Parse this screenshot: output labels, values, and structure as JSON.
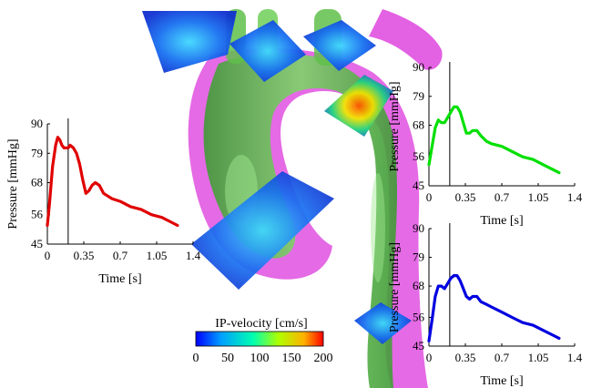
{
  "figure": {
    "colorbar": {
      "title": "IP-velocity [cm/s]",
      "ticks": [
        "0",
        "50",
        "100",
        "150",
        "200"
      ],
      "min": 0,
      "max": 200,
      "colors": [
        "#0000ff",
        "#00a0ff",
        "#00ffb0",
        "#b0ff00",
        "#ffb000",
        "#ff0000"
      ]
    },
    "colors": {
      "vessel_green": "#5fbf4a",
      "vessel_magenta": "#e050e0",
      "plane_blue": "#1040e0",
      "plane_cyan": "#30c8e0"
    }
  },
  "chart_data": [
    {
      "type": "line",
      "title": "",
      "xlabel": "Time [s]",
      "ylabel": "Pressure [mmHg]",
      "xlim": [
        0,
        1.4
      ],
      "ylim": [
        45,
        90
      ],
      "xticks": [
        "0",
        "0.35",
        "0.7",
        "1.05",
        "1.4"
      ],
      "yticks": [
        "45",
        "56",
        "68",
        "79",
        "90"
      ],
      "marker_time": 0.2,
      "color": "#e00000",
      "series": [
        {
          "x": [
            0,
            0.02,
            0.05,
            0.08,
            0.1,
            0.12,
            0.14,
            0.16,
            0.18,
            0.2,
            0.22,
            0.25,
            0.28,
            0.31,
            0.34,
            0.37,
            0.4,
            0.43,
            0.46,
            0.5,
            0.54,
            0.58,
            0.62,
            0.7,
            0.8,
            0.9,
            1.0,
            1.1,
            1.2,
            1.25
          ],
          "y": [
            52,
            60,
            74,
            82,
            85,
            84,
            82,
            81,
            81,
            81,
            82,
            81,
            79,
            75,
            69,
            64,
            65,
            67,
            68,
            67,
            64,
            63,
            62,
            61,
            59,
            58,
            56,
            55,
            53,
            52
          ]
        }
      ]
    },
    {
      "type": "line",
      "title": "",
      "xlabel": "Time [s]",
      "ylabel": "Pressure [mmHg]",
      "xlim": [
        0,
        1.4
      ],
      "ylim": [
        45,
        90
      ],
      "xticks": [
        "0",
        "0.35",
        "0.7",
        "1.05",
        "1.4"
      ],
      "yticks": [
        "45",
        "56",
        "68",
        "79",
        "90"
      ],
      "marker_time": 0.2,
      "color": "#00e000",
      "series": [
        {
          "x": [
            0,
            0.03,
            0.06,
            0.09,
            0.12,
            0.15,
            0.18,
            0.21,
            0.24,
            0.27,
            0.3,
            0.33,
            0.36,
            0.39,
            0.42,
            0.46,
            0.5,
            0.55,
            0.6,
            0.7,
            0.8,
            0.9,
            1.0,
            1.1,
            1.2,
            1.25
          ],
          "y": [
            53,
            60,
            67,
            70,
            69,
            69,
            71,
            73,
            75,
            75,
            73,
            69,
            65,
            65,
            66,
            66,
            64,
            62,
            61,
            60,
            58,
            56,
            55,
            53,
            51,
            50
          ]
        }
      ]
    },
    {
      "type": "line",
      "title": "",
      "xlabel": "Time [s]",
      "ylabel": "Pressure [mmHg]",
      "xlim": [
        0,
        1.4
      ],
      "ylim": [
        45,
        90
      ],
      "xticks": [
        "0",
        "0.35",
        "0.7",
        "1.05",
        "1.4"
      ],
      "yticks": [
        "45",
        "56",
        "68",
        "79",
        "90"
      ],
      "marker_time": 0.2,
      "color": "#0000e0",
      "series": [
        {
          "x": [
            0,
            0.03,
            0.06,
            0.09,
            0.12,
            0.15,
            0.18,
            0.21,
            0.24,
            0.27,
            0.3,
            0.33,
            0.36,
            0.39,
            0.42,
            0.46,
            0.5,
            0.55,
            0.6,
            0.7,
            0.8,
            0.9,
            1.0,
            1.1,
            1.2,
            1.25
          ],
          "y": [
            47,
            55,
            64,
            68,
            68,
            67,
            69,
            71,
            72,
            72,
            70,
            67,
            64,
            63,
            64,
            64,
            62,
            61,
            60,
            58,
            56,
            54,
            53,
            51,
            49,
            48
          ]
        }
      ]
    }
  ]
}
